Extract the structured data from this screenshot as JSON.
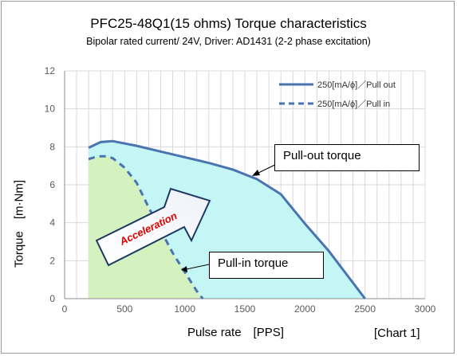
{
  "title": "PFC25-48Q1(15 ohms) Torque characteristics",
  "subtitle": "Bipolar rated current/ 24V, Driver: AD1431 (2-2 phase excitation)",
  "chart_tag": "[Chart 1]",
  "colors": {
    "line": "#4a74b0",
    "pullout_fill": "#c4f6f6",
    "pullin_fill": "#d4f2c0",
    "grid": "#d9d9d9",
    "acceleration_text": "#e00000"
  },
  "chart_data": {
    "type": "line",
    "title": "PFC25-48Q1(15 ohms) Torque characteristics",
    "subtitle": "Bipolar rated current/ 24V, Driver: AD1431 (2-2 phase excitation)",
    "xlabel": "Pulse rate　[PPS]",
    "ylabel": "Torque　[m·Nm]",
    "xlim": [
      0,
      3000
    ],
    "ylim": [
      0,
      12
    ],
    "x_ticks": [
      0,
      500,
      1000,
      1500,
      2000,
      2500,
      3000
    ],
    "y_ticks": [
      0,
      2,
      4,
      6,
      8,
      10,
      12
    ],
    "grid": true,
    "legend_position": "top-right",
    "series": [
      {
        "name": "250[mA/ϕ]／Pull out",
        "style": "solid",
        "x": [
          200,
          300,
          400,
          600,
          800,
          1000,
          1200,
          1400,
          1600,
          1800,
          2000,
          2200,
          2500
        ],
        "y": [
          7.95,
          8.25,
          8.3,
          8.05,
          7.75,
          7.45,
          7.15,
          6.8,
          6.3,
          5.5,
          3.95,
          2.5,
          0
        ]
      },
      {
        "name": "250[mA/ϕ]／Pull in",
        "style": "dashed",
        "x": [
          200,
          250,
          300,
          350,
          400,
          500,
          600,
          700,
          800,
          900,
          1000,
          1100,
          1150
        ],
        "y": [
          7.35,
          7.45,
          7.5,
          7.5,
          7.4,
          6.9,
          6.1,
          4.8,
          3.6,
          2.4,
          1.4,
          0.4,
          0
        ]
      }
    ],
    "annotations": {
      "pullout": "Pull-out torque",
      "pullin": "Pull-in torque",
      "acceleration": "Acceleration"
    }
  }
}
